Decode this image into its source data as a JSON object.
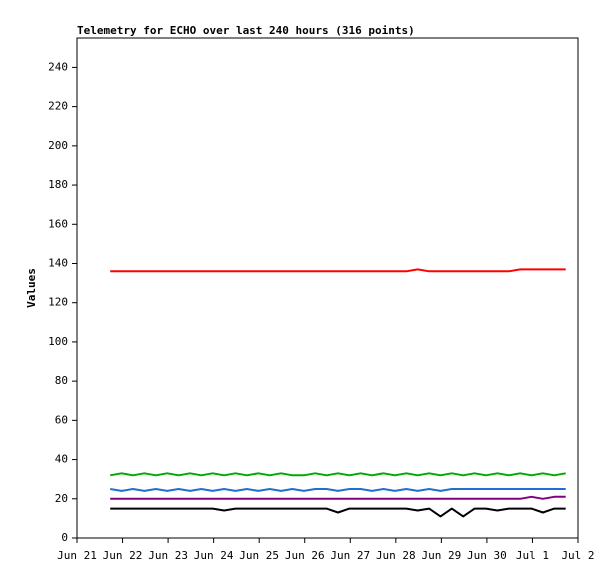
{
  "chart_data": {
    "type": "line",
    "title": "Telemetry for ECHO over last 240 hours (316 points)",
    "ylabel": "Values",
    "x": [
      0.73,
      0.98,
      1.23,
      1.48,
      1.73,
      1.98,
      2.23,
      2.48,
      2.73,
      2.98,
      3.23,
      3.48,
      3.73,
      3.98,
      4.23,
      4.48,
      4.73,
      4.98,
      5.23,
      5.48,
      5.73,
      5.98,
      6.23,
      6.48,
      6.73,
      6.98,
      7.23,
      7.48,
      7.73,
      7.98,
      8.23,
      8.48,
      8.73,
      8.98,
      9.23,
      9.48,
      9.73,
      9.98,
      10.23,
      10.48,
      10.73
    ],
    "series": [
      {
        "color": "#ff0000",
        "values": [
          136,
          136,
          136,
          136,
          136,
          136,
          136,
          136,
          136,
          136,
          136,
          136,
          136,
          136,
          136,
          136,
          136,
          136,
          136,
          136,
          136,
          136,
          136,
          136,
          136,
          136,
          136,
          137,
          136,
          136,
          136,
          136,
          136,
          136,
          136,
          136,
          137,
          137,
          137,
          137,
          137
        ]
      },
      {
        "color": "#00aa00",
        "values": [
          32,
          33,
          32,
          33,
          32,
          33,
          32,
          33,
          32,
          33,
          32,
          33,
          32,
          33,
          32,
          33,
          32,
          32,
          33,
          32,
          33,
          32,
          33,
          32,
          33,
          32,
          33,
          32,
          33,
          32,
          33,
          32,
          33,
          32,
          33,
          32,
          33,
          32,
          33,
          32,
          33
        ]
      },
      {
        "color": "#1f6fd0",
        "values": [
          25,
          24,
          25,
          24,
          25,
          24,
          25,
          24,
          25,
          24,
          25,
          24,
          25,
          24,
          25,
          24,
          25,
          24,
          25,
          25,
          24,
          25,
          25,
          24,
          25,
          24,
          25,
          24,
          25,
          24,
          25,
          25,
          25,
          25,
          25,
          25,
          25,
          25,
          25,
          25,
          25
        ]
      },
      {
        "color": "#800080",
        "values": [
          20,
          20,
          20,
          20,
          20,
          20,
          20,
          20,
          20,
          20,
          20,
          20,
          20,
          20,
          20,
          20,
          20,
          20,
          20,
          20,
          20,
          20,
          20,
          20,
          20,
          20,
          20,
          20,
          20,
          20,
          20,
          20,
          20,
          20,
          20,
          20,
          20,
          21,
          20,
          21,
          21
        ]
      },
      {
        "color": "#000000",
        "values": [
          15,
          15,
          15,
          15,
          15,
          15,
          15,
          15,
          15,
          15,
          14,
          15,
          15,
          15,
          15,
          15,
          15,
          15,
          15,
          15,
          13,
          15,
          15,
          15,
          15,
          15,
          15,
          14,
          15,
          11,
          15,
          11,
          15,
          15,
          14,
          15,
          15,
          15,
          13,
          15,
          15
        ]
      }
    ],
    "xlim": [
      0,
      11
    ],
    "xticks": [
      {
        "value": 0,
        "label": "Jun 21"
      },
      {
        "value": 1,
        "label": "Jun 22"
      },
      {
        "value": 2,
        "label": "Jun 23"
      },
      {
        "value": 3,
        "label": "Jun 24"
      },
      {
        "value": 4,
        "label": "Jun 25"
      },
      {
        "value": 5,
        "label": "Jun 26"
      },
      {
        "value": 6,
        "label": "Jun 27"
      },
      {
        "value": 7,
        "label": "Jun 28"
      },
      {
        "value": 8,
        "label": "Jun 29"
      },
      {
        "value": 9,
        "label": "Jun 30"
      },
      {
        "value": 10,
        "label": "Jul 1"
      },
      {
        "value": 11,
        "label": "Jul 2"
      }
    ],
    "ylim": [
      0,
      255
    ],
    "yticks": [
      0,
      20,
      40,
      60,
      80,
      100,
      120,
      140,
      160,
      180,
      200,
      220,
      240
    ],
    "grid": false
  }
}
